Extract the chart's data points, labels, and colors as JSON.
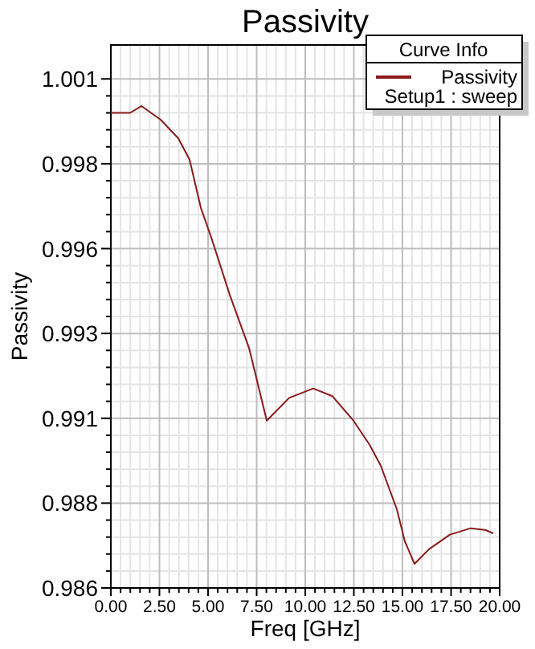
{
  "chart_data": {
    "type": "line",
    "title": "Passivity",
    "xlabel": "Freq [GHz]",
    "ylabel": "Passivity",
    "legend_title": "Curve Info",
    "annotations": [
      "Setup1 : sweep"
    ],
    "x": [
      0,
      0.99,
      1.57,
      2.56,
      3.47,
      4.05,
      4.38,
      4.63,
      5.21,
      6.12,
      7.11,
      8.02,
      9.17,
      10.41,
      11.4,
      12.48,
      13.31,
      13.88,
      14.71,
      15.12,
      15.62,
      16.36,
      17.44,
      18.51,
      19.26,
      19.67
    ],
    "series": [
      {
        "name": "Passivity",
        "color": "#8b1a1a",
        "values": [
          1.0,
          1.0,
          1.0002,
          0.9998,
          0.99925,
          0.99862,
          0.99781,
          0.9972,
          0.99625,
          0.99463,
          0.99307,
          0.99093,
          0.9916,
          0.99188,
          0.99165,
          0.99093,
          0.99022,
          0.98961,
          0.98832,
          0.98738,
          0.98671,
          0.98714,
          0.98757,
          0.98776,
          0.98771,
          0.98761
        ]
      }
    ],
    "xlim": [
      0,
      20
    ],
    "xticks": [
      {
        "value": 0,
        "label": "0.00"
      },
      {
        "value": 2.5,
        "label": "2.50"
      },
      {
        "value": 5,
        "label": "5.00"
      },
      {
        "value": 7.5,
        "label": "7.50"
      },
      {
        "value": 10,
        "label": "10.00"
      },
      {
        "value": 12.5,
        "label": "12.50"
      },
      {
        "value": 15,
        "label": "15.00"
      },
      {
        "value": 17.5,
        "label": "17.50"
      },
      {
        "value": 20,
        "label": "20.00"
      }
    ],
    "ylim": [
      0.986,
      1.002
    ],
    "yticks": [
      {
        "value": 0.986,
        "label": "0.986"
      },
      {
        "value": 0.9885,
        "label": "0.988"
      },
      {
        "value": 0.991,
        "label": "0.991"
      },
      {
        "value": 0.9935,
        "label": "0.993"
      },
      {
        "value": 0.996,
        "label": "0.996"
      },
      {
        "value": 0.9985,
        "label": "0.998"
      },
      {
        "value": 1.001,
        "label": "1.001"
      }
    ],
    "grid": true,
    "legend": "top right",
    "marker": "none",
    "line_style": "solid"
  }
}
